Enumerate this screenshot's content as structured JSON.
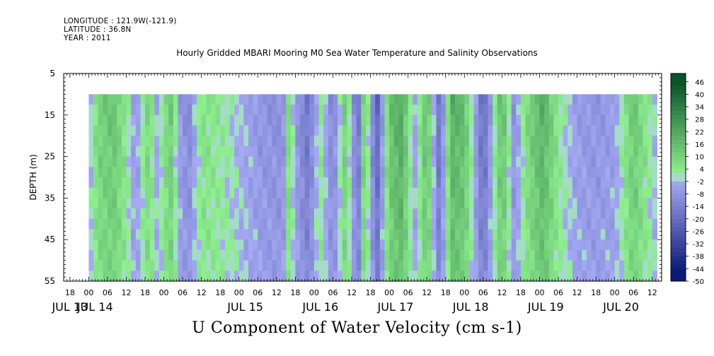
{
  "header": {
    "longitude": "LONGITUDE : 121.9W(-121.9)",
    "latitude": "LATITUDE : 36.8N",
    "year": "YEAR : 2011"
  },
  "chart_data": {
    "type": "heatmap",
    "title": "Hourly Gridded MBARI Mooring M0 Sea Water Temperature and Salinity Observations",
    "xlabel": "U Component of Water Velocity (cm s-1)",
    "ylabel": "DEPTH (m)",
    "ylim": [
      5,
      55
    ],
    "y_reversed": true,
    "yticks": [
      5,
      15,
      25,
      35,
      45,
      55
    ],
    "xlim_hours": [
      -8,
      183
    ],
    "hour_ticks": [
      {
        "h": -6,
        "label": "18"
      },
      {
        "h": 0,
        "label": "00"
      },
      {
        "h": 6,
        "label": "06"
      },
      {
        "h": 12,
        "label": "12"
      },
      {
        "h": 18,
        "label": "18"
      },
      {
        "h": 24,
        "label": "00"
      },
      {
        "h": 30,
        "label": "06"
      },
      {
        "h": 36,
        "label": "12"
      },
      {
        "h": 42,
        "label": "18"
      },
      {
        "h": 48,
        "label": "00"
      },
      {
        "h": 54,
        "label": "06"
      },
      {
        "h": 60,
        "label": "12"
      },
      {
        "h": 66,
        "label": "18"
      },
      {
        "h": 72,
        "label": "00"
      },
      {
        "h": 78,
        "label": "06"
      },
      {
        "h": 84,
        "label": "12"
      },
      {
        "h": 90,
        "label": "18"
      },
      {
        "h": 96,
        "label": "00"
      },
      {
        "h": 102,
        "label": "06"
      },
      {
        "h": 108,
        "label": "12"
      },
      {
        "h": 114,
        "label": "18"
      },
      {
        "h": 120,
        "label": "00"
      },
      {
        "h": 126,
        "label": "06"
      },
      {
        "h": 132,
        "label": "12"
      },
      {
        "h": 138,
        "label": "18"
      },
      {
        "h": 144,
        "label": "00"
      },
      {
        "h": 150,
        "label": "06"
      },
      {
        "h": 156,
        "label": "12"
      },
      {
        "h": 162,
        "label": "18"
      },
      {
        "h": 168,
        "label": "00"
      },
      {
        "h": 174,
        "label": "06"
      },
      {
        "h": 180,
        "label": "12"
      }
    ],
    "day_labels": [
      {
        "h": -6,
        "label": "JUL 13"
      },
      {
        "h": 2,
        "label": "JUL 14"
      },
      {
        "h": 50,
        "label": "JUL 15"
      },
      {
        "h": 74,
        "label": "JUL 16"
      },
      {
        "h": 98,
        "label": "JUL 17"
      },
      {
        "h": 122,
        "label": "JUL 18"
      },
      {
        "h": 146,
        "label": "JUL 19"
      },
      {
        "h": 170,
        "label": "JUL 20"
      }
    ],
    "data_extent": {
      "hour_start": 0,
      "hour_end": 181,
      "depth_top": 10,
      "depth_bottom": 55
    },
    "colorbar": {
      "range": [
        -50,
        50
      ],
      "labels": [
        "46",
        "40",
        "34",
        "28",
        "22",
        "16",
        "10",
        "4",
        "-2",
        "-8",
        "-14",
        "-20",
        "-26",
        "-32",
        "-38",
        "-44",
        "-50"
      ]
    },
    "u_profile_surface_to_bottom_by_time": [
      {
        "h": 0,
        "u": -4
      },
      {
        "h": 3,
        "u": 10
      },
      {
        "h": 8,
        "u": 14
      },
      {
        "h": 12,
        "u": 4
      },
      {
        "h": 15,
        "u": -8
      },
      {
        "h": 19,
        "u": 10
      },
      {
        "h": 22,
        "u": -4
      },
      {
        "h": 26,
        "u": 14
      },
      {
        "h": 29,
        "u": -6
      },
      {
        "h": 32,
        "u": -12
      },
      {
        "h": 36,
        "u": 6
      },
      {
        "h": 44,
        "u": 2
      },
      {
        "h": 55,
        "u": -8
      },
      {
        "h": 62,
        "u": -10
      },
      {
        "h": 64,
        "u": 10
      },
      {
        "h": 66,
        "u": -6
      },
      {
        "h": 70,
        "u": -18
      },
      {
        "h": 74,
        "u": 4
      },
      {
        "h": 78,
        "u": -14
      },
      {
        "h": 82,
        "u": 12
      },
      {
        "h": 86,
        "u": -20
      },
      {
        "h": 88,
        "u": 14
      },
      {
        "h": 92,
        "u": -24
      },
      {
        "h": 96,
        "u": 14
      },
      {
        "h": 100,
        "u": 22
      },
      {
        "h": 104,
        "u": -6
      },
      {
        "h": 108,
        "u": 18
      },
      {
        "h": 112,
        "u": -20
      },
      {
        "h": 116,
        "u": 20
      },
      {
        "h": 120,
        "u": 16
      },
      {
        "h": 126,
        "u": -22
      },
      {
        "h": 132,
        "u": 18
      },
      {
        "h": 136,
        "u": -10
      },
      {
        "h": 140,
        "u": 8
      },
      {
        "h": 145,
        "u": 20
      },
      {
        "h": 150,
        "u": 4
      },
      {
        "h": 156,
        "u": -6
      },
      {
        "h": 162,
        "u": -8
      },
      {
        "h": 168,
        "u": -6
      },
      {
        "h": 174,
        "u": 14
      },
      {
        "h": 181,
        "u": -2
      }
    ]
  }
}
